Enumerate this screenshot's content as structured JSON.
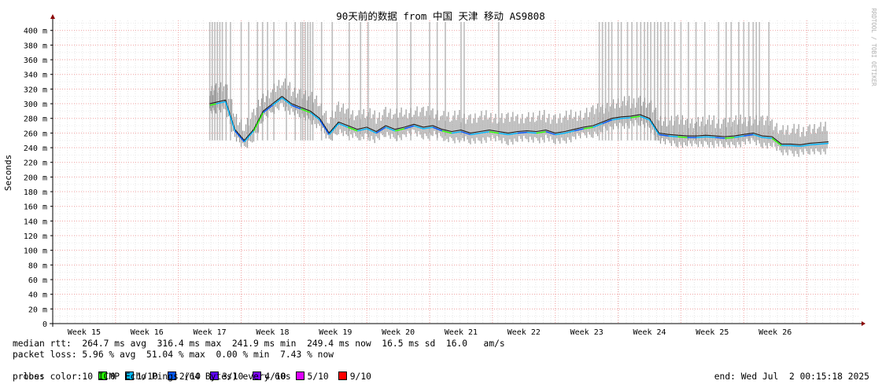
{
  "chart_data": {
    "type": "line",
    "title": "90天前的数据 from 中国 天津 移动 AS9808",
    "ylabel": "Seconds",
    "watermark": "RRDTOOL / TOBI OETIKER",
    "y_unit_suffix": "m",
    "ylim": [
      0,
      410
    ],
    "y_ticks": [
      0,
      20,
      40,
      60,
      80,
      100,
      120,
      140,
      160,
      180,
      200,
      220,
      240,
      260,
      280,
      300,
      320,
      340,
      360,
      380,
      400
    ],
    "x_ticks": [
      "Week 15",
      "Week 16",
      "Week 17",
      "Week 18",
      "Week 19",
      "Week 20",
      "Week 21",
      "Week 22",
      "Week 23",
      "Week 24",
      "Week 25",
      "Week 26"
    ],
    "grid": true,
    "series": [
      {
        "x": [
          17.0,
          17.1,
          17.25,
          17.4,
          17.55,
          17.7,
          17.85,
          18.0,
          18.15,
          18.3,
          18.45,
          18.6,
          18.75,
          18.9,
          19.05,
          19.2,
          19.35,
          19.5,
          19.65,
          19.8,
          19.95,
          20.1,
          20.25,
          20.4,
          20.55,
          20.7,
          20.85,
          21.0,
          21.15,
          21.3,
          21.45,
          21.6,
          21.75,
          21.9,
          22.05,
          22.2,
          22.35,
          22.5,
          22.65,
          22.8,
          22.95,
          23.1,
          23.25,
          23.4,
          23.55,
          23.7,
          23.85,
          24.0,
          24.15,
          24.3,
          24.45,
          24.6,
          24.75,
          24.9,
          25.05,
          25.2,
          25.35,
          25.5,
          25.65,
          25.8,
          25.95,
          26.1,
          26.25,
          26.4,
          26.55,
          26.7,
          26.85
        ],
        "y": [
          300,
          302,
          305,
          265,
          250,
          265,
          290,
          300,
          310,
          300,
          295,
          290,
          280,
          260,
          275,
          270,
          265,
          268,
          262,
          270,
          265,
          268,
          272,
          268,
          270,
          265,
          262,
          264,
          260,
          262,
          264,
          262,
          260,
          262,
          263,
          262,
          264,
          260,
          262,
          265,
          268,
          270,
          275,
          280,
          282,
          283,
          285,
          280,
          260,
          258,
          257,
          256,
          256,
          257,
          256,
          255,
          256,
          258,
          260,
          256,
          255,
          245,
          245,
          244,
          246,
          247,
          248
        ]
      }
    ],
    "loss_spike_weeks": [
      17.0,
      17.04,
      17.08,
      17.12,
      17.16,
      17.2,
      17.26,
      17.33,
      17.5,
      17.62,
      17.76,
      17.84,
      17.92,
      18.02,
      18.22,
      18.36,
      18.45,
      18.48,
      18.52,
      18.56,
      18.6,
      18.64,
      18.78,
      18.95,
      19.22,
      19.4,
      19.52,
      19.98,
      20.2,
      20.5,
      20.62,
      20.75,
      21.0,
      21.05,
      21.6,
      23.2,
      23.25,
      23.3,
      23.35,
      23.4,
      23.5,
      23.55,
      23.65,
      23.72,
      23.8,
      23.86,
      23.92,
      23.97,
      24.02,
      24.08,
      24.13,
      24.18,
      24.25,
      24.3,
      24.4,
      24.5,
      24.62,
      24.74,
      24.88,
      25.1,
      25.22,
      25.3,
      25.42,
      25.5,
      25.58,
      25.65,
      25.7,
      25.75,
      25.9
    ]
  },
  "stats": {
    "median_rtt": "median rtt:  264.7 ms avg  316.4 ms max  241.9 ms min  249.4 ms now  16.5 ms sd  16.0   am/s",
    "packet_loss": "packet loss: 5.96 % avg  51.04 % max  0.00 % min  7.43 % now",
    "loss_color_label": "loss color:",
    "probe": "probe:       10 ICMP Echo Pings (64 Bytes) every 60s",
    "end": "end: Wed Jul  2 00:15:18 2025"
  },
  "loss_colors": [
    {
      "label": "0",
      "color": "#26ff00"
    },
    {
      "label": "1/10",
      "color": "#00b8ff"
    },
    {
      "label": "2/10",
      "color": "#0059ff"
    },
    {
      "label": "3/10",
      "color": "#5e00ff"
    },
    {
      "label": "4/10",
      "color": "#7e00ff"
    },
    {
      "label": "5/10",
      "color": "#dd00ff"
    },
    {
      "label": "9/10",
      "color": "#ff0000"
    }
  ]
}
